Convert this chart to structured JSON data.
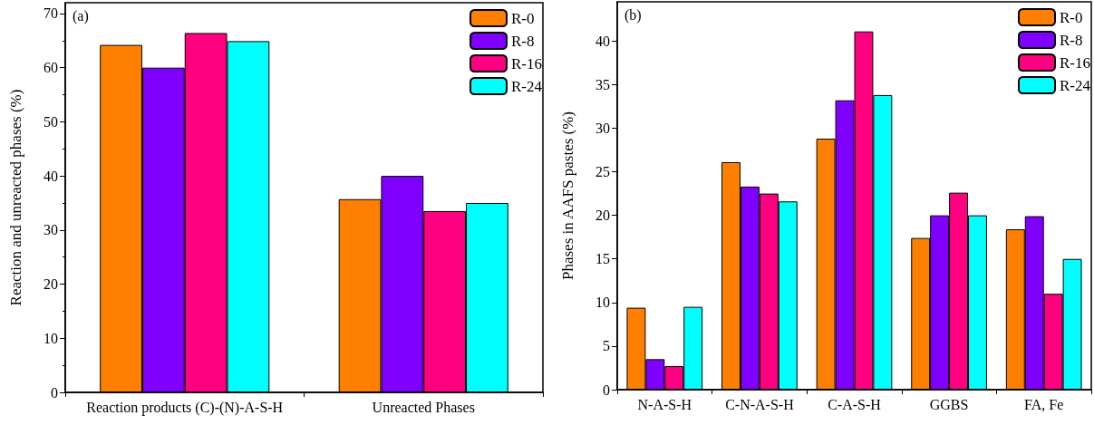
{
  "chart_data": [
    {
      "type": "bar",
      "annotations": [
        "(a)"
      ],
      "ylabel": "Reaction and unreacted phases (%)",
      "categories": [
        "Reaction products (C)-(N)-A-S-H",
        "Unreacted Phases"
      ],
      "ylim": [
        0,
        72
      ],
      "yticks": [
        0,
        10,
        20,
        30,
        40,
        50,
        60,
        70
      ],
      "legend": "top right",
      "series": [
        {
          "name": "R-0",
          "color": "#ff8000",
          "values": [
            64.2,
            35.7
          ]
        },
        {
          "name": "R-8",
          "color": "#8000ff",
          "values": [
            60.0,
            40.0
          ]
        },
        {
          "name": "R-16",
          "color": "#ff0080",
          "values": [
            66.4,
            33.5
          ]
        },
        {
          "name": "R-24",
          "color": "#00ffff",
          "values": [
            64.9,
            35.0
          ]
        }
      ]
    },
    {
      "type": "bar",
      "annotations": [
        "(b)"
      ],
      "ylabel": "Phases in AAFS pastes (%)",
      "categories": [
        "N-A-S-H",
        "C-N-A-S-H",
        "C-A-S-H",
        "GGBS",
        "FA, Fe"
      ],
      "ylim": [
        0,
        44.5
      ],
      "yticks": [
        0,
        5,
        10,
        15,
        20,
        25,
        30,
        35,
        40
      ],
      "legend": "top right",
      "series": [
        {
          "name": "R-0",
          "color": "#ff8000",
          "values": [
            9.4,
            26.1,
            28.8,
            17.4,
            18.4
          ]
        },
        {
          "name": "R-8",
          "color": "#8000ff",
          "values": [
            3.5,
            23.3,
            33.2,
            20.0,
            19.9
          ]
        },
        {
          "name": "R-16",
          "color": "#ff0080",
          "values": [
            2.7,
            22.5,
            41.1,
            22.6,
            11.0
          ]
        },
        {
          "name": "R-24",
          "color": "#00ffff",
          "values": [
            9.5,
            21.6,
            33.8,
            20.0,
            15.0
          ]
        }
      ]
    }
  ]
}
